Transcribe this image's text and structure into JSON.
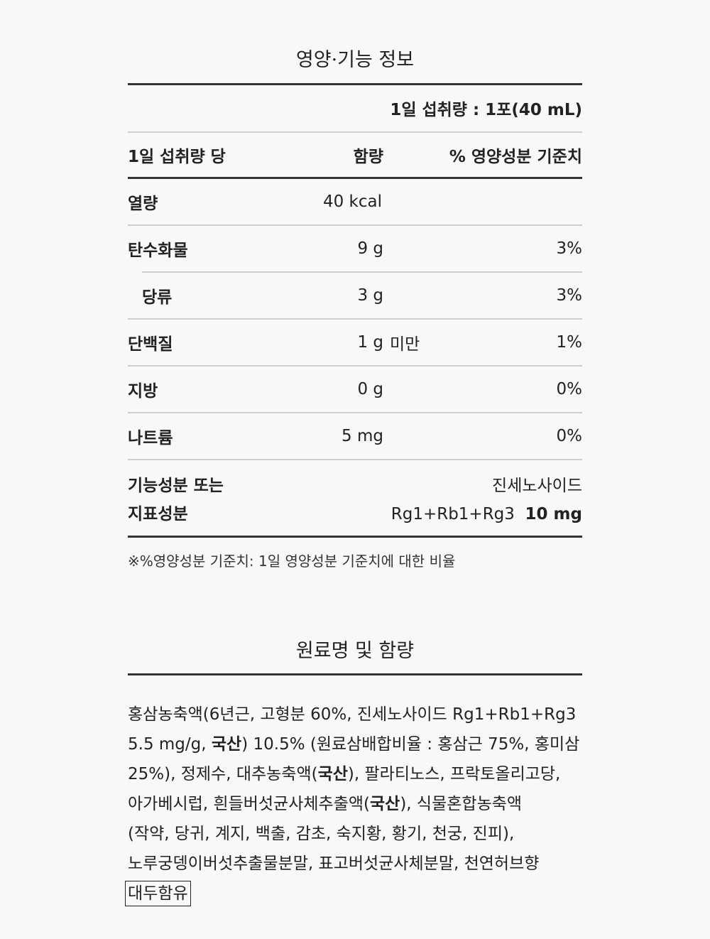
{
  "nutrition": {
    "title": "영양·기능 정보",
    "serving": "1일 섭취량 : 1포(40 mL)",
    "headers": {
      "per": "1일 섭취량 당",
      "amount": "함량",
      "dv": "% 영양성분 기준치"
    },
    "rows": [
      {
        "name": "열량",
        "amount": "40 kcal",
        "suffix": "",
        "dv": ""
      },
      {
        "name": "탄수화물",
        "amount": "9 g",
        "suffix": "",
        "dv": "3%"
      },
      {
        "name": "당류",
        "amount": "3 g",
        "suffix": "",
        "dv": "3%"
      },
      {
        "name": "단백질",
        "amount": "1 g",
        "suffix": "미만",
        "dv": "1%"
      },
      {
        "name": "지방",
        "amount": "0 g",
        "suffix": "",
        "dv": "0%"
      },
      {
        "name": "나트륨",
        "amount": "5 mg",
        "suffix": "",
        "dv": "0%"
      }
    ],
    "functional": {
      "label_line1": "기능성분 또는",
      "label_line2": "지표성분",
      "value_line1": "진세노사이드",
      "value_line2": "Rg1+Rb1+Rg3",
      "value_amount": "10 mg"
    },
    "footnote": "※%영양성분 기준치: 1일 영양성분 기준치에 대한 비율"
  },
  "ingredients": {
    "title": "원료명 및 함량",
    "lines": [
      [
        {
          "t": "홍삼농축액(6년근, 고형분 60%, 진세노사이드 Rg1+Rb1+Rg3"
        }
      ],
      [
        {
          "t": "5.5 mg/g, "
        },
        {
          "t": "국산",
          "b": true
        },
        {
          "t": ") 10.5% (원료삼배합비율 : 홍삼근 75%, 홍미삼"
        }
      ],
      [
        {
          "t": "25%), 정제수, 대추농축액("
        },
        {
          "t": "국산",
          "b": true
        },
        {
          "t": "), 팔라티노스, 프락토올리고당,"
        }
      ],
      [
        {
          "t": "아가베시럽, 흰들버섯균사체추출액("
        },
        {
          "t": "국산",
          "b": true
        },
        {
          "t": "), 식물혼합농축액"
        }
      ],
      [
        {
          "t": "(작약, 당귀, 계지, 백출, 감초, 숙지황, 황기, 천궁, 진피),"
        }
      ],
      [
        {
          "t": "노루궁뎅이버섯추출물분말, 표고버섯균사체분말, 천연허브향"
        }
      ]
    ],
    "allergen": "대두함유"
  }
}
